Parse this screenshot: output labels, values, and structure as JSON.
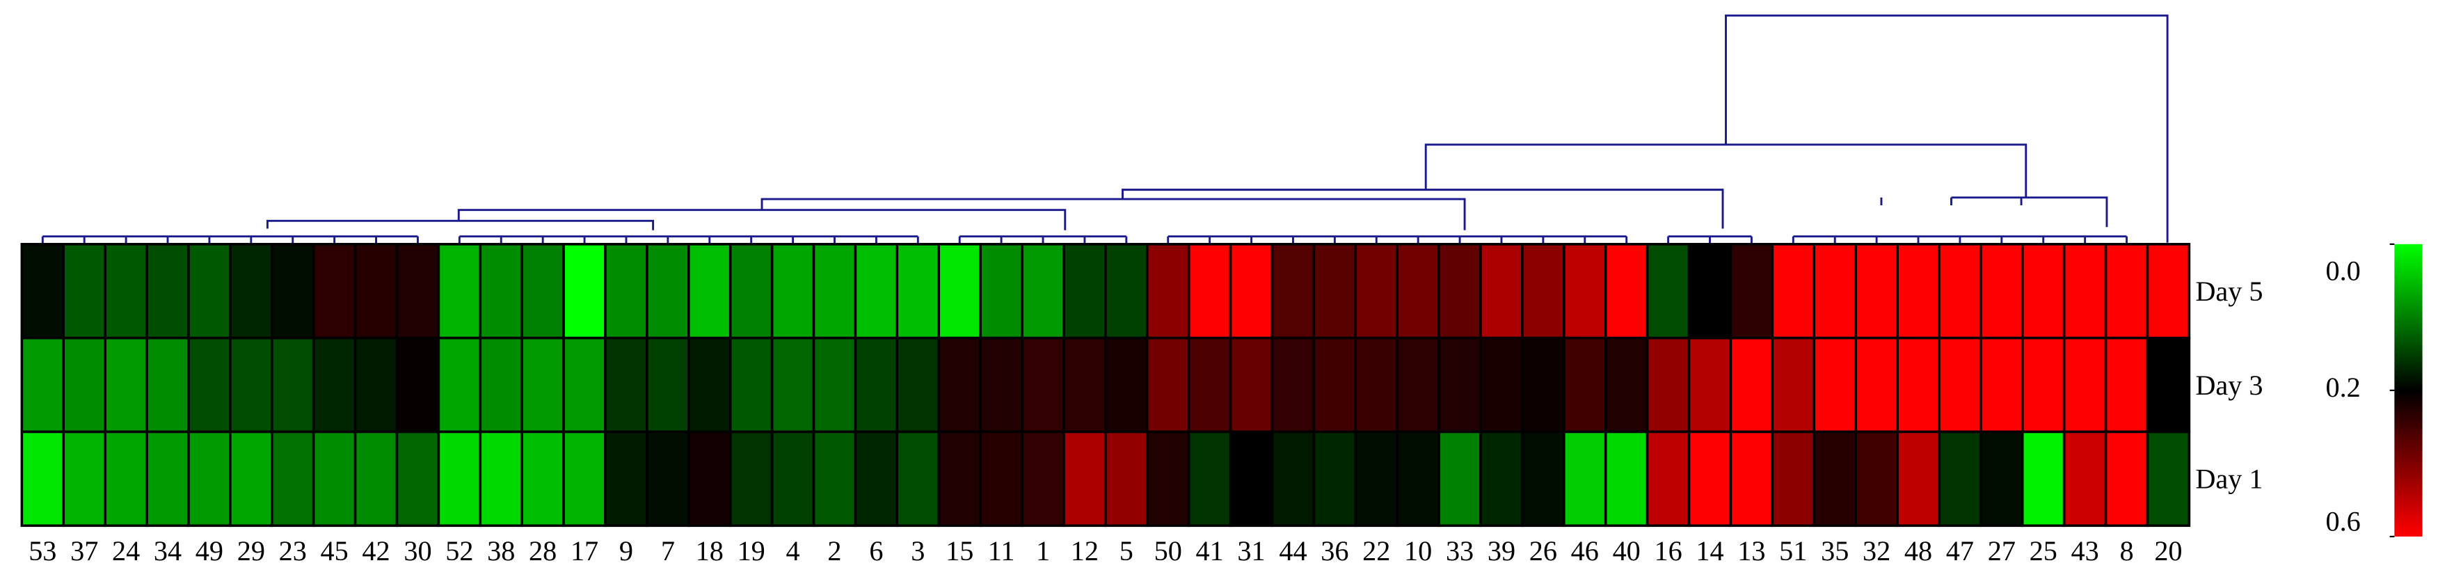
{
  "chart_data": {
    "type": "heatmap",
    "categories": [
      "53",
      "37",
      "24",
      "34",
      "49",
      "29",
      "23",
      "45",
      "42",
      "30",
      "52",
      "38",
      "28",
      "17",
      "9",
      "7",
      "18",
      "19",
      "4",
      "2",
      "6",
      "3",
      "15",
      "11",
      "1",
      "12",
      "5",
      "50",
      "41",
      "31",
      "44",
      "36",
      "22",
      "10",
      "33",
      "39",
      "26",
      "46",
      "40",
      "16",
      "14",
      "13",
      "51",
      "35",
      "32",
      "48",
      "47",
      "27",
      "25",
      "43",
      "8",
      "20"
    ],
    "rows": [
      "Day 5",
      "Day 3",
      "Day 1"
    ],
    "values": [
      [
        0.19,
        0.13,
        0.13,
        0.14,
        0.13,
        0.17,
        0.19,
        0.27,
        0.26,
        0.25,
        0.06,
        0.09,
        0.1,
        0.0,
        0.09,
        0.09,
        0.05,
        0.1,
        0.07,
        0.07,
        0.05,
        0.05,
        0.02,
        0.09,
        0.08,
        0.15,
        0.15,
        0.42,
        0.6,
        0.6,
        0.33,
        0.34,
        0.38,
        0.38,
        0.35,
        0.47,
        0.42,
        0.5,
        0.6,
        0.14,
        0.2,
        0.27,
        0.6,
        0.6,
        0.6,
        0.6,
        0.6,
        0.6,
        0.6,
        0.6,
        0.6,
        0.6
      ],
      [
        0.08,
        0.09,
        0.08,
        0.09,
        0.14,
        0.14,
        0.14,
        0.17,
        0.18,
        0.21,
        0.07,
        0.09,
        0.08,
        0.08,
        0.16,
        0.15,
        0.18,
        0.13,
        0.12,
        0.12,
        0.15,
        0.16,
        0.25,
        0.25,
        0.28,
        0.27,
        0.24,
        0.38,
        0.32,
        0.36,
        0.28,
        0.3,
        0.29,
        0.27,
        0.25,
        0.24,
        0.22,
        0.3,
        0.25,
        0.43,
        0.48,
        0.6,
        0.48,
        0.6,
        0.6,
        0.6,
        0.6,
        0.6,
        0.6,
        0.6,
        0.6,
        0.2
      ],
      [
        0.02,
        0.06,
        0.07,
        0.08,
        0.08,
        0.07,
        0.11,
        0.09,
        0.09,
        0.12,
        0.03,
        0.03,
        0.05,
        0.06,
        0.18,
        0.19,
        0.23,
        0.16,
        0.15,
        0.13,
        0.17,
        0.14,
        0.25,
        0.26,
        0.28,
        0.47,
        0.43,
        0.25,
        0.16,
        0.2,
        0.18,
        0.17,
        0.19,
        0.19,
        0.1,
        0.17,
        0.19,
        0.04,
        0.03,
        0.5,
        0.6,
        0.6,
        0.42,
        0.26,
        0.3,
        0.5,
        0.16,
        0.19,
        0.01,
        0.52,
        0.6,
        0.14
      ]
    ],
    "zlim": [
      0,
      0.6
    ],
    "zmid": 0.2,
    "zticks": [
      {
        "value": 0,
        "label": "0.0"
      },
      0.2,
      0.6
    ],
    "colors": [
      "#00ff00",
      "#000000",
      "#ff0000"
    ]
  }
}
